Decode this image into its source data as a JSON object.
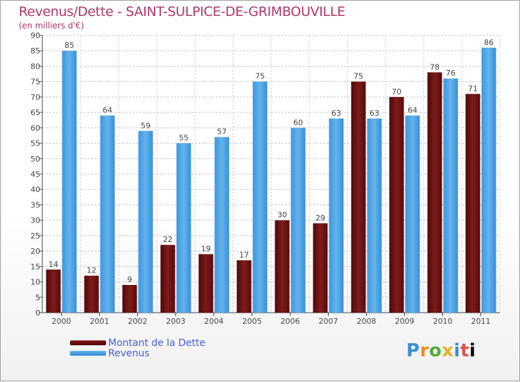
{
  "header": {
    "title": "Revenus/Dette - SAINT-SULPICE-DE-GRIMBOUVILLE",
    "subtitle": "(en milliers d'€)"
  },
  "legend": {
    "debt_label": "Montant de la Dette",
    "revenue_label": "Revenus"
  },
  "logo": {
    "letters": [
      "P",
      "r",
      "o",
      "x",
      "i",
      "t",
      "i"
    ]
  },
  "colors": {
    "title": "#b0356a",
    "debt": "#6b0f0f",
    "revenue": "#4aa3e6",
    "legend_text": "#4060dd"
  },
  "chart_data": {
    "type": "bar",
    "title": "Revenus/Dette - SAINT-SULPICE-DE-GRIMBOUVILLE",
    "ylabel": "(en milliers d'€)",
    "xlabel": "",
    "categories": [
      "2000",
      "2001",
      "2002",
      "2003",
      "2004",
      "2005",
      "2006",
      "2007",
      "2008",
      "2009",
      "2010",
      "2011"
    ],
    "series": [
      {
        "name": "Montant de la Dette",
        "values": [
          14,
          12,
          9,
          22,
          19,
          17,
          30,
          29,
          75,
          70,
          78,
          71
        ]
      },
      {
        "name": "Revenus",
        "values": [
          85,
          64,
          59,
          55,
          57,
          75,
          60,
          63,
          63,
          64,
          76,
          86
        ]
      }
    ],
    "ylim": [
      0,
      90
    ],
    "yticks": [
      0,
      5,
      10,
      15,
      20,
      25,
      30,
      35,
      40,
      45,
      50,
      55,
      60,
      65,
      70,
      75,
      80,
      85,
      90
    ],
    "grid": true,
    "legend_position": "bottom-left"
  }
}
